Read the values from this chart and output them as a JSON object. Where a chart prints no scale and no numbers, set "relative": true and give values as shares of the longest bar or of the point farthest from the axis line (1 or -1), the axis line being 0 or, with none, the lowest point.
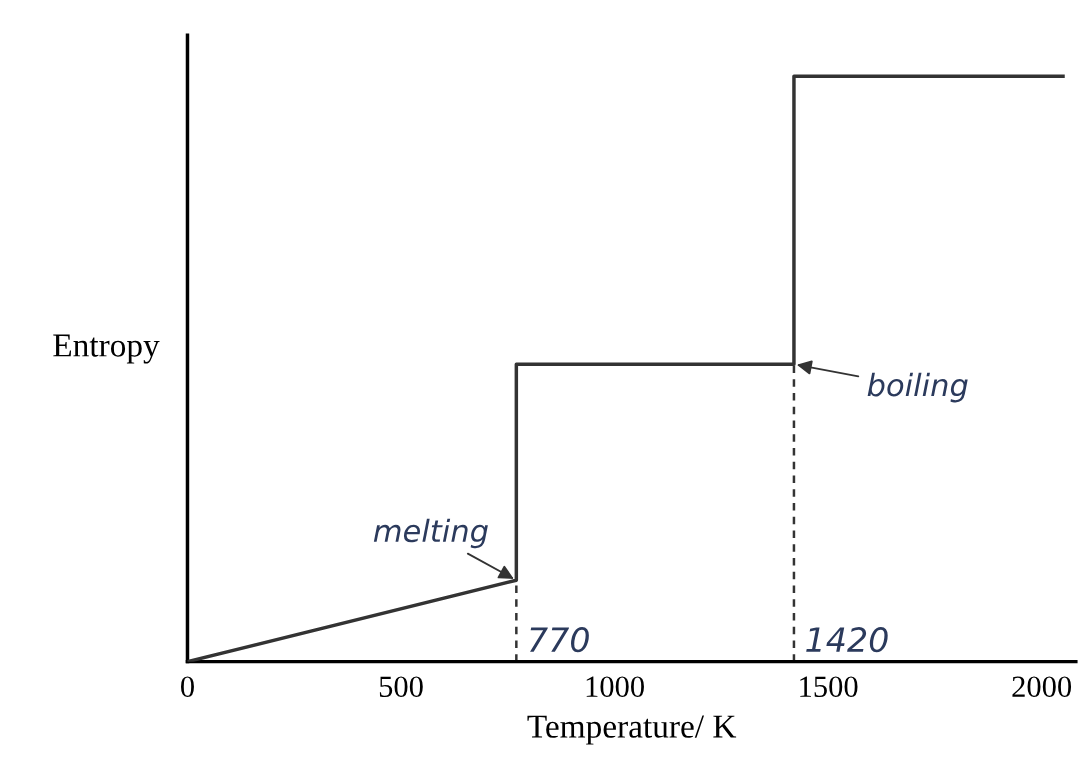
{
  "chart_data": {
    "type": "line",
    "relative": true,
    "xlabel": "Temperature/ K",
    "ylabel": "Entropy",
    "series": [
      {
        "color": "#333333",
        "x": [
          0,
          770,
          770,
          1420,
          1420,
          2050
        ],
        "values": [
          0,
          0.139,
          0.508,
          0.508,
          1,
          1
        ]
      }
    ],
    "xlim": [
      0,
      2080
    ],
    "xticks": [
      0,
      500,
      1000,
      1500,
      2000
    ],
    "ref_lines": [
      {
        "axis": "x",
        "value": 770,
        "label": "770",
        "color": "#333333",
        "line_style": "dashed"
      },
      {
        "axis": "x",
        "value": 1420,
        "label": "1420",
        "color": "#333333",
        "line_style": "dashed"
      }
    ],
    "annotations": [
      {
        "text": "melting",
        "x": 770,
        "y": 0.139
      },
      {
        "text": "boiling",
        "x": 1420,
        "y": 0.508
      }
    ],
    "grid": false,
    "legend": false,
    "marker": "none",
    "line_style": "solid"
  }
}
